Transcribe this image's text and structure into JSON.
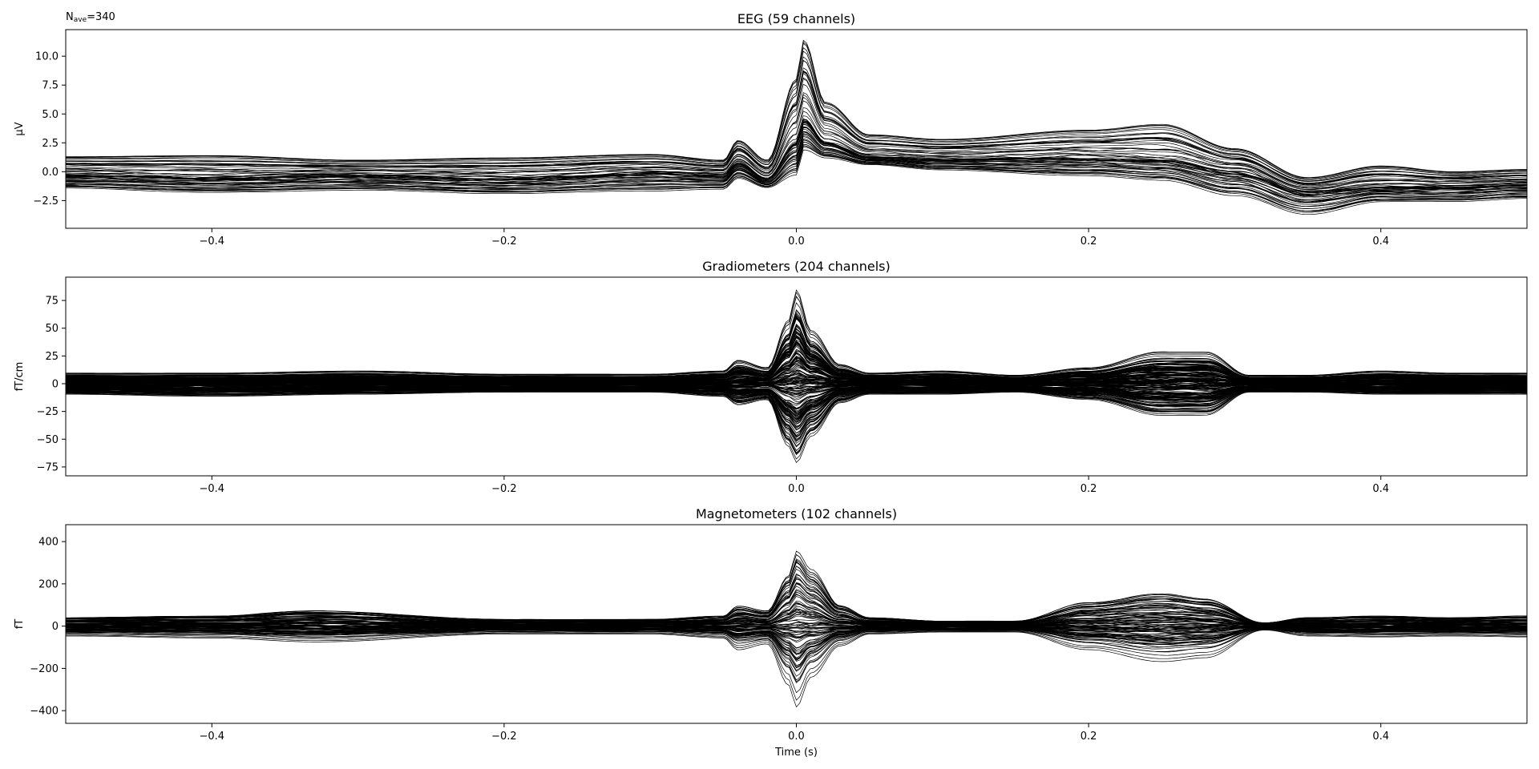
{
  "figure": {
    "nave_label": "N",
    "nave_sub": "ave",
    "nave_value": "=340"
  },
  "chart_data": [
    {
      "type": "line",
      "title": "EEG (59 channels)",
      "ylabel": "µV",
      "xlabel": "",
      "xlim": [
        -0.5,
        0.5
      ],
      "ylim": [
        -4.9,
        12.3
      ],
      "xticks": [
        -0.4,
        -0.2,
        0.0,
        0.2,
        0.4
      ],
      "xtick_labels": [
        "−0.4",
        "−0.2",
        "0.0",
        "0.2",
        "0.4"
      ],
      "yticks": [
        -2.5,
        0.0,
        2.5,
        5.0,
        7.5,
        10.0
      ],
      "ytick_labels": [
        "−2.5",
        "0.0",
        "2.5",
        "5.0",
        "7.5",
        "10.0"
      ],
      "n_channels": 59,
      "envelope": {
        "x": [
          -0.5,
          -0.4,
          -0.3,
          -0.2,
          -0.1,
          -0.05,
          -0.04,
          -0.02,
          0.0,
          0.005,
          0.02,
          0.05,
          0.1,
          0.2,
          0.25,
          0.3,
          0.35,
          0.4,
          0.45,
          0.5
        ],
        "upper": [
          1.3,
          1.4,
          1.0,
          1.2,
          1.5,
          1.0,
          2.7,
          1.0,
          8.0,
          11.4,
          6.0,
          3.2,
          2.8,
          3.6,
          4.1,
          2.0,
          -0.5,
          0.5,
          0.0,
          0.2
        ],
        "mean": [
          -0.3,
          -0.5,
          -0.3,
          -0.6,
          -0.1,
          -0.3,
          0.8,
          -0.6,
          2.5,
          4.5,
          2.5,
          1.3,
          1.1,
          1.2,
          1.0,
          0.0,
          -1.8,
          -1.3,
          -1.3,
          -1.1
        ],
        "lower": [
          -1.6,
          -2.0,
          -1.8,
          -2.1,
          -1.9,
          -1.7,
          -0.8,
          -1.5,
          -0.7,
          1.5,
          1.0,
          0.5,
          0.0,
          -0.6,
          -1.0,
          -2.4,
          -4.0,
          -2.8,
          -2.8,
          -2.5
        ]
      }
    },
    {
      "type": "line",
      "title": "Gradiometers (204 channels)",
      "ylabel": "fT/cm",
      "xlabel": "",
      "xlim": [
        -0.5,
        0.5
      ],
      "ylim": [
        -83,
        96
      ],
      "xticks": [
        -0.4,
        -0.2,
        0.0,
        0.2,
        0.4
      ],
      "xtick_labels": [
        "−0.4",
        "−0.2",
        "0.0",
        "0.2",
        "0.4"
      ],
      "yticks": [
        -75,
        -50,
        -25,
        0,
        25,
        50,
        75
      ],
      "ytick_labels": [
        "−75",
        "−50",
        "−25",
        "0",
        "25",
        "50",
        "75"
      ],
      "n_channels": 204,
      "envelope": {
        "x": [
          -0.5,
          -0.4,
          -0.3,
          -0.2,
          -0.1,
          -0.05,
          -0.04,
          -0.02,
          -0.005,
          0.0,
          0.01,
          0.03,
          0.05,
          0.1,
          0.15,
          0.2,
          0.25,
          0.28,
          0.31,
          0.35,
          0.4,
          0.45,
          0.5
        ],
        "upper": [
          10,
          10,
          12,
          9,
          9,
          12,
          22,
          15,
          60,
          88,
          50,
          18,
          10,
          12,
          8,
          15,
          30,
          30,
          8,
          8,
          12,
          10,
          10
        ],
        "mean": [
          0,
          0,
          0,
          0,
          0,
          0,
          0,
          0,
          0,
          0,
          0,
          0,
          0,
          0,
          0,
          0,
          0,
          0,
          0,
          0,
          0,
          0,
          0
        ],
        "lower": [
          -10,
          -12,
          -10,
          -8,
          -8,
          -12,
          -20,
          -15,
          -60,
          -75,
          -50,
          -18,
          -10,
          -10,
          -8,
          -15,
          -30,
          -30,
          -8,
          -8,
          -10,
          -10,
          -10
        ]
      }
    },
    {
      "type": "line",
      "title": "Magnetometers (102 channels)",
      "ylabel": "fT",
      "xlabel": "Time (s)",
      "xlim": [
        -0.5,
        0.5
      ],
      "ylim": [
        -460,
        480
      ],
      "xticks": [
        -0.4,
        -0.2,
        0.0,
        0.2,
        0.4
      ],
      "xtick_labels": [
        "−0.4",
        "−0.2",
        "0.0",
        "0.2",
        "0.4"
      ],
      "yticks": [
        -400,
        -200,
        0,
        200,
        400
      ],
      "ytick_labels": [
        "−400",
        "−200",
        "0",
        "200",
        "400"
      ],
      "n_channels": 102,
      "envelope": {
        "x": [
          -0.5,
          -0.4,
          -0.33,
          -0.2,
          -0.1,
          -0.05,
          -0.04,
          -0.02,
          -0.005,
          0.0,
          0.01,
          0.03,
          0.05,
          0.1,
          0.15,
          0.2,
          0.25,
          0.28,
          0.32,
          0.35,
          0.4,
          0.45,
          0.5
        ],
        "upper": [
          50,
          60,
          90,
          40,
          40,
          60,
          120,
          90,
          300,
          440,
          330,
          120,
          50,
          30,
          30,
          140,
          190,
          160,
          20,
          50,
          60,
          50,
          60
        ],
        "mean": [
          0,
          0,
          0,
          0,
          0,
          0,
          0,
          0,
          0,
          0,
          0,
          0,
          0,
          0,
          0,
          0,
          0,
          0,
          0,
          0,
          0,
          0,
          0
        ],
        "lower": [
          -50,
          -60,
          -80,
          -40,
          -40,
          -60,
          -120,
          -90,
          -300,
          -410,
          -260,
          -100,
          -40,
          -30,
          -30,
          -120,
          -180,
          -160,
          -20,
          -50,
          -55,
          -50,
          -55
        ]
      }
    }
  ]
}
